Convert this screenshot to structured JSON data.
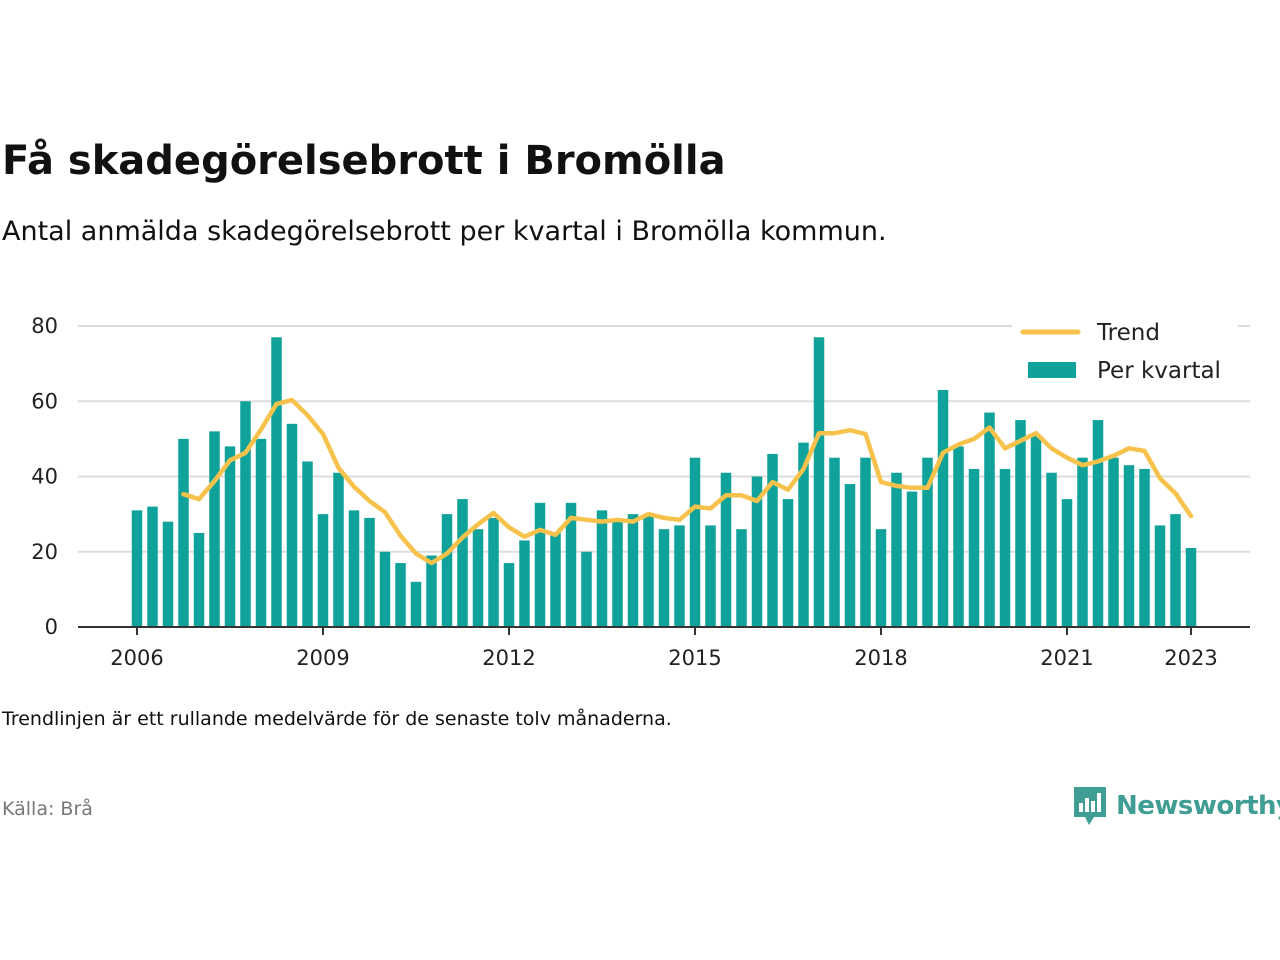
{
  "title": "Få skadegörelsebrott i Bromölla",
  "subtitle": "Antal anmälda skadegörelsebrott per kvartal i Bromölla kommun.",
  "note": "Trendlinjen är ett rullande medelvärde för de senaste tolv månaderna.",
  "source": "Källa: Brå",
  "brand": "Newsworthy",
  "colors": {
    "bar": "#0ea29a",
    "trend": "#f7c24b",
    "grid": "#dddddd",
    "axis": "#333333",
    "brand": "#3f9d93"
  },
  "chart_data": {
    "type": "bar",
    "x_ticks": [
      "2006",
      "2009",
      "2012",
      "2015",
      "2018",
      "2021",
      "2023"
    ],
    "y_ticks": [
      "0",
      "20",
      "40",
      "60",
      "80"
    ],
    "ylim": [
      0,
      80
    ],
    "legend": {
      "position": "top-right",
      "entries": [
        "Trend",
        "Per kvartal"
      ]
    },
    "categories": [
      "2006 Q1",
      "2006 Q2",
      "2006 Q3",
      "2006 Q4",
      "2007 Q1",
      "2007 Q2",
      "2007 Q3",
      "2007 Q4",
      "2008 Q1",
      "2008 Q2",
      "2008 Q3",
      "2008 Q4",
      "2009 Q1",
      "2009 Q2",
      "2009 Q3",
      "2009 Q4",
      "2010 Q1",
      "2010 Q2",
      "2010 Q3",
      "2010 Q4",
      "2011 Q1",
      "2011 Q2",
      "2011 Q3",
      "2011 Q4",
      "2012 Q1",
      "2012 Q2",
      "2012 Q3",
      "2012 Q4",
      "2013 Q1",
      "2013 Q2",
      "2013 Q3",
      "2013 Q4",
      "2014 Q1",
      "2014 Q2",
      "2014 Q3",
      "2014 Q4",
      "2015 Q1",
      "2015 Q2",
      "2015 Q3",
      "2015 Q4",
      "2016 Q1",
      "2016 Q2",
      "2016 Q3",
      "2016 Q4",
      "2017 Q1",
      "2017 Q2",
      "2017 Q3",
      "2017 Q4",
      "2018 Q1",
      "2018 Q2",
      "2018 Q3",
      "2018 Q4",
      "2019 Q1",
      "2019 Q2",
      "2019 Q3",
      "2019 Q4",
      "2020 Q1",
      "2020 Q2",
      "2020 Q3",
      "2020 Q4",
      "2021 Q1",
      "2021 Q2",
      "2021 Q3",
      "2021 Q4",
      "2022 Q1",
      "2022 Q2",
      "2022 Q3",
      "2022 Q4",
      "2023 Q1"
    ],
    "series": [
      {
        "name": "Per kvartal",
        "type": "bar",
        "values": [
          31,
          32,
          28,
          50,
          25,
          52,
          48,
          60,
          50,
          77,
          54,
          44,
          30,
          41,
          31,
          29,
          20,
          17,
          12,
          19,
          30,
          34,
          26,
          29,
          17,
          23,
          33,
          25,
          33,
          20,
          31,
          28,
          30,
          30,
          26,
          27,
          45,
          27,
          41,
          26,
          40,
          46,
          34,
          49,
          77,
          45,
          38,
          45,
          26,
          41,
          36,
          45,
          63,
          48,
          42,
          57,
          42,
          55,
          51,
          41,
          34,
          45,
          55,
          45,
          43,
          42,
          27,
          30,
          21
        ]
      },
      {
        "name": "Trend",
        "type": "line",
        "values": [
          null,
          null,
          null,
          35.3,
          34,
          38.8,
          44.3,
          46.3,
          52.5,
          59.3,
          60.3,
          56.3,
          51.3,
          42.3,
          37.3,
          33.5,
          30.5,
          24.3,
          19.5,
          17,
          19.5,
          23.8,
          27.3,
          30.3,
          26.5,
          24,
          25.8,
          24.5,
          29,
          28.5,
          28,
          28.5,
          28,
          30,
          29,
          28.5,
          32,
          31.5,
          35,
          35,
          33.5,
          38.5,
          36.5,
          42,
          51.5,
          51.5,
          52.3,
          51.3,
          38.5,
          37.5,
          37,
          37,
          46.3,
          48.5,
          50,
          53,
          47.5,
          49.5,
          51.5,
          47.5,
          45,
          43,
          44,
          45.5,
          47.5,
          46.8,
          39.5,
          35.5,
          29.5
        ]
      }
    ]
  }
}
